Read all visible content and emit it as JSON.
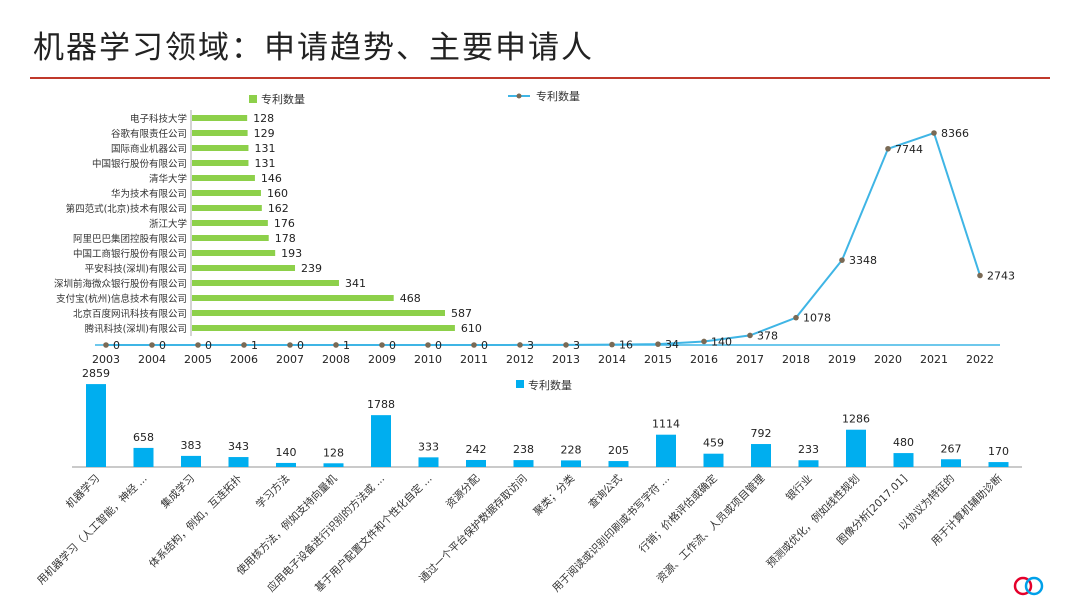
{
  "title": "机器学习领域：申请趋势、主要申请人",
  "colors": {
    "rule": "#c0392b",
    "green": "#8dd04a",
    "blue": "#00aeef",
    "line": "#3fb5e5",
    "marker": "#7a6a55",
    "logo_red": "#e4002b",
    "logo_blue": "#00a0e9"
  },
  "chart_data": [
    {
      "type": "line",
      "legend": "专利数量",
      "legend_position": "top-center",
      "x": [
        "2003",
        "2004",
        "2005",
        "2006",
        "2007",
        "2008",
        "2009",
        "2010",
        "2011",
        "2012",
        "2013",
        "2014",
        "2015",
        "2016",
        "2017",
        "2018",
        "2019",
        "2020",
        "2021",
        "2022"
      ],
      "values": [
        0,
        0,
        0,
        1,
        0,
        1,
        0,
        0,
        0,
        3,
        3,
        16,
        34,
        140,
        378,
        1078,
        3348,
        7744,
        8366,
        2743
      ],
      "ylim": [
        0,
        9000
      ]
    },
    {
      "type": "bar",
      "orientation": "horizontal",
      "legend": "专利数量",
      "legend_position": "top",
      "categories": [
        "电子科技大学",
        "谷歌有限责任公司",
        "国际商业机器公司",
        "中国银行股份有限公司",
        "清华大学",
        "华为技术有限公司",
        "第四范式(北京)技术有限公司",
        "浙江大学",
        "阿里巴巴集团控股有限公司",
        "中国工商银行股份有限公司",
        "平安科技(深圳)有限公司",
        "深圳前海微众银行股份有限公司",
        "支付宝(杭州)信息技术有限公司",
        "北京百度网讯科技有限公司",
        "腾讯科技(深圳)有限公司"
      ],
      "values": [
        128,
        129,
        131,
        131,
        146,
        160,
        162,
        176,
        178,
        193,
        239,
        341,
        468,
        587,
        610
      ]
    },
    {
      "type": "bar",
      "legend": "专利数量",
      "legend_position": "top-left",
      "categories": [
        "机器学习",
        "用机器学习（人工智能，神经 ...",
        "集成学习",
        "体系结构，例如，互连拓扑",
        "学习方法",
        "使用核方法，例如支持向量机",
        "应用电子设备进行识别的方法或 ...",
        "基于用户配置文件和个性化自定 ...",
        "资源分配",
        "通过一个平台保护数据存取访问",
        "聚类；分类",
        "查询公式",
        "用于阅读或识别印刷或书写字符 ...",
        "行销；价格评估或确定",
        "资源、工作流、人员或项目管理",
        "银行业",
        "预测或优化，例如线性规划",
        "图像分析[2017.01]",
        "以协议为特征的",
        "用于计算机辅助诊断"
      ],
      "values": [
        2859,
        658,
        383,
        343,
        140,
        128,
        1788,
        333,
        242,
        238,
        228,
        205,
        1114,
        459,
        792,
        233,
        1286,
        480,
        267,
        170
      ]
    }
  ]
}
